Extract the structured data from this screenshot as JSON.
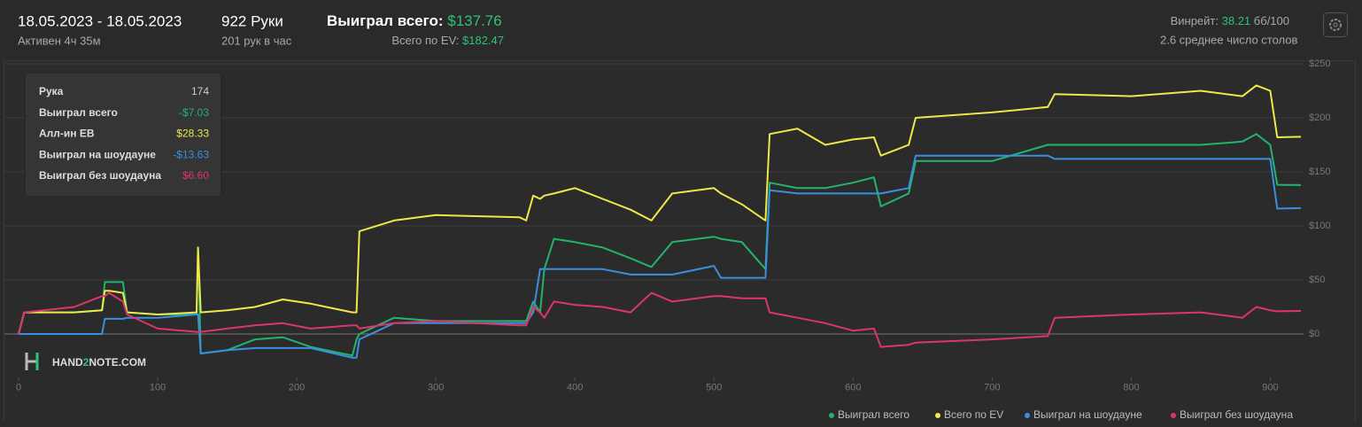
{
  "header": {
    "date_range": "18.05.2023 - 18.05.2023",
    "active": "Активен 4ч 35м",
    "hands": "922 Руки",
    "hands_per_hour": "201 рук в час",
    "won_label": "Выиграл всего:",
    "won_value": "$137.76",
    "ev_label": "Всего по EV:",
    "ev_value": "$182.47",
    "winrate_label": "Винрейт:",
    "winrate_value": "38.21",
    "winrate_unit": "бб/100",
    "tables": "2.6 среднее число столов"
  },
  "tooltip": {
    "rows": [
      {
        "label": "Рука",
        "value": "174"
      },
      {
        "label": "Выиграл всего",
        "value": "-$7.03"
      },
      {
        "label": "Алл-ин ЕВ",
        "value": "$28.33"
      },
      {
        "label": "Выиграл на шоудауне",
        "value": "-$13.63"
      },
      {
        "label": "Выиграл без шоудауна",
        "value": "$6.60"
      }
    ]
  },
  "logo": [
    "HAND",
    "2",
    "NOTE.COM"
  ],
  "chart_data": {
    "type": "line",
    "x": [
      0,
      4,
      40,
      60,
      62,
      65,
      75,
      78,
      100,
      128,
      129,
      131,
      150,
      170,
      190,
      210,
      240,
      243,
      245,
      270,
      300,
      360,
      365,
      370,
      375,
      378,
      385,
      400,
      420,
      440,
      455,
      470,
      500,
      505,
      520,
      537,
      540,
      560,
      580,
      600,
      615,
      620,
      640,
      645,
      700,
      740,
      745,
      800,
      850,
      880,
      890,
      900,
      905,
      922
    ],
    "series": [
      {
        "name": "Выиграл всего",
        "color": "#22b46c",
        "values": [
          0,
          20,
          20,
          22,
          48,
          48,
          48,
          20,
          18,
          18,
          80,
          -18,
          -15,
          -5,
          -3,
          -12,
          -20,
          -5,
          0,
          15,
          12,
          12,
          12,
          30,
          20,
          60,
          88,
          85,
          80,
          70,
          62,
          85,
          90,
          88,
          85,
          60,
          140,
          135,
          135,
          140,
          145,
          118,
          130,
          160,
          160,
          175,
          175,
          175,
          175,
          178,
          185,
          175,
          138,
          137.76
        ]
      },
      {
        "name": "Всего по EV",
        "color": "#eee84a",
        "values": [
          0,
          20,
          20,
          22,
          40,
          40,
          38,
          20,
          18,
          20,
          80,
          20,
          22,
          25,
          32,
          28,
          20,
          20,
          95,
          105,
          110,
          108,
          105,
          128,
          125,
          128,
          130,
          135,
          125,
          115,
          105,
          130,
          135,
          130,
          120,
          105,
          185,
          190,
          175,
          180,
          182,
          165,
          175,
          200,
          205,
          210,
          222,
          220,
          225,
          220,
          230,
          225,
          182,
          182.47
        ]
      },
      {
        "name": "Выиграл на шоудауне",
        "color": "#3b8ee0",
        "values": [
          0,
          0,
          0,
          0,
          14,
          14,
          14,
          15,
          15,
          18,
          18,
          -18,
          -15,
          -13,
          -13,
          -13,
          -22,
          -22,
          -5,
          10,
          10,
          10,
          10,
          20,
          60,
          60,
          60,
          60,
          60,
          55,
          55,
          55,
          63,
          52,
          52,
          52,
          133,
          130,
          130,
          130,
          130,
          130,
          135,
          165,
          165,
          165,
          162,
          162,
          162,
          162,
          162,
          162,
          116,
          116.45
        ]
      },
      {
        "name": "Выиграл без шоудауна",
        "color": "#dd3569",
        "values": [
          0,
          20,
          25,
          35,
          35,
          38,
          30,
          18,
          5,
          2,
          2,
          2,
          5,
          8,
          10,
          5,
          8,
          8,
          5,
          10,
          12,
          8,
          8,
          25,
          20,
          15,
          30,
          27,
          25,
          20,
          38,
          30,
          35,
          35,
          33,
          33,
          20,
          15,
          10,
          3,
          5,
          -12,
          -10,
          -8,
          -5,
          -2,
          15,
          18,
          20,
          15,
          25,
          22,
          21,
          21.31
        ]
      }
    ],
    "xlim": [
      0,
      922
    ],
    "xticks": [
      0,
      100,
      200,
      300,
      400,
      500,
      600,
      700,
      800,
      900
    ],
    "ylim": [
      -40,
      250
    ],
    "yticks": [
      {
        "value": 0,
        "label": "$0"
      },
      {
        "value": 50,
        "label": "$50"
      },
      {
        "value": 100,
        "label": "$100"
      },
      {
        "value": 150,
        "label": "$150"
      },
      {
        "value": 200,
        "label": "$200"
      },
      {
        "value": 250,
        "label": "$250"
      }
    ],
    "grid": true
  }
}
